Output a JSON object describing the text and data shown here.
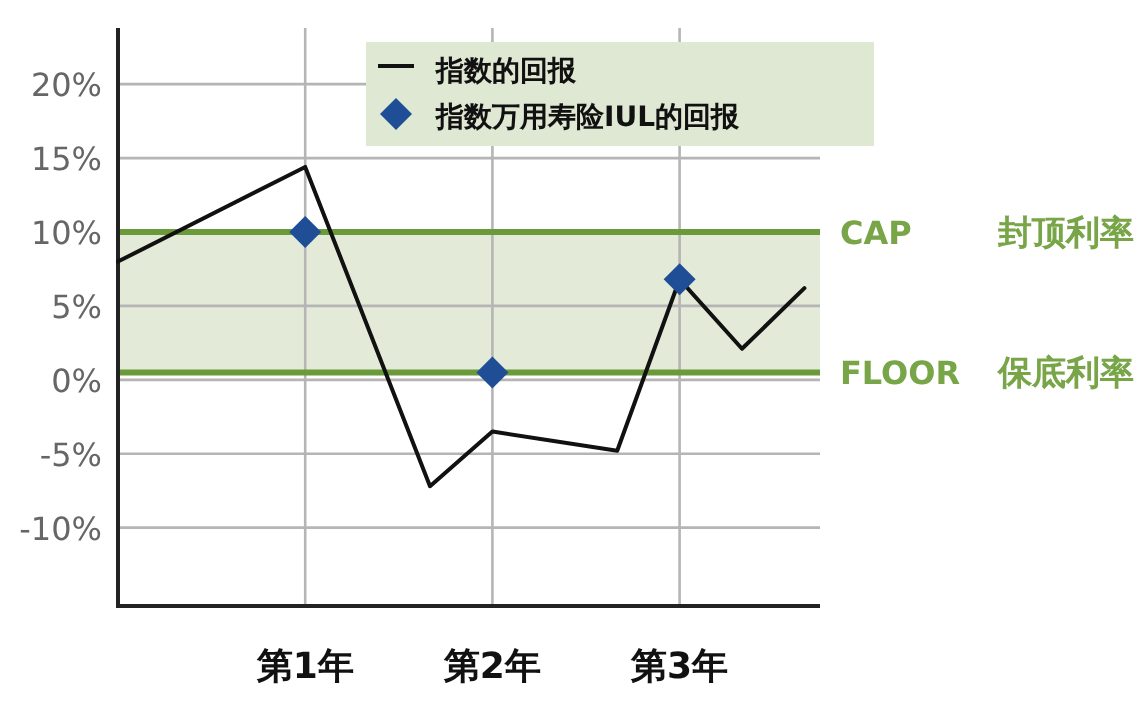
{
  "chart_data": {
    "type": "line",
    "categories": [
      null,
      null,
      null,
      "第1年",
      null,
      null,
      "第2年",
      null,
      null,
      "第3年",
      null,
      null
    ],
    "ylim": [
      -15.3,
      23.8
    ],
    "yticks": [
      {
        "value": -10,
        "label": "-10%"
      },
      {
        "value": -5,
        "label": "-5%"
      },
      {
        "value": 0,
        "label": "0%"
      },
      {
        "value": 5,
        "label": "5%"
      },
      {
        "value": 10,
        "label": "10%"
      },
      {
        "value": 15,
        "label": "15%"
      },
      {
        "value": 20,
        "label": "20%"
      }
    ],
    "series": [
      {
        "name": "指数的回报",
        "color": "#111111",
        "line_style": "solid",
        "values": [
          8.0,
          null,
          null,
          14.4,
          null,
          -7.2,
          -3.5,
          null,
          -4.8,
          6.8,
          2.1,
          6.2
        ]
      },
      {
        "name": "指数万用寿险IUL的回报",
        "type": "scatter",
        "color": "#1f4e96",
        "marker": "diamond",
        "values": [
          null,
          null,
          null,
          10,
          null,
          null,
          0.5,
          null,
          null,
          6.8,
          null,
          null
        ]
      }
    ],
    "ref_lines": [
      {
        "axis": "y",
        "value": 10,
        "label": "CAP 封顶利率",
        "color": "#6a9a3a"
      },
      {
        "axis": "y",
        "value": 0.5,
        "label": "FLOOR 保底利率",
        "color": "#6a9a3a"
      }
    ],
    "bands": [
      {
        "axis": "y",
        "from": 0.5,
        "to": 10,
        "color": "#e3ebd8"
      }
    ],
    "grid": true,
    "legend": "top right"
  }
}
